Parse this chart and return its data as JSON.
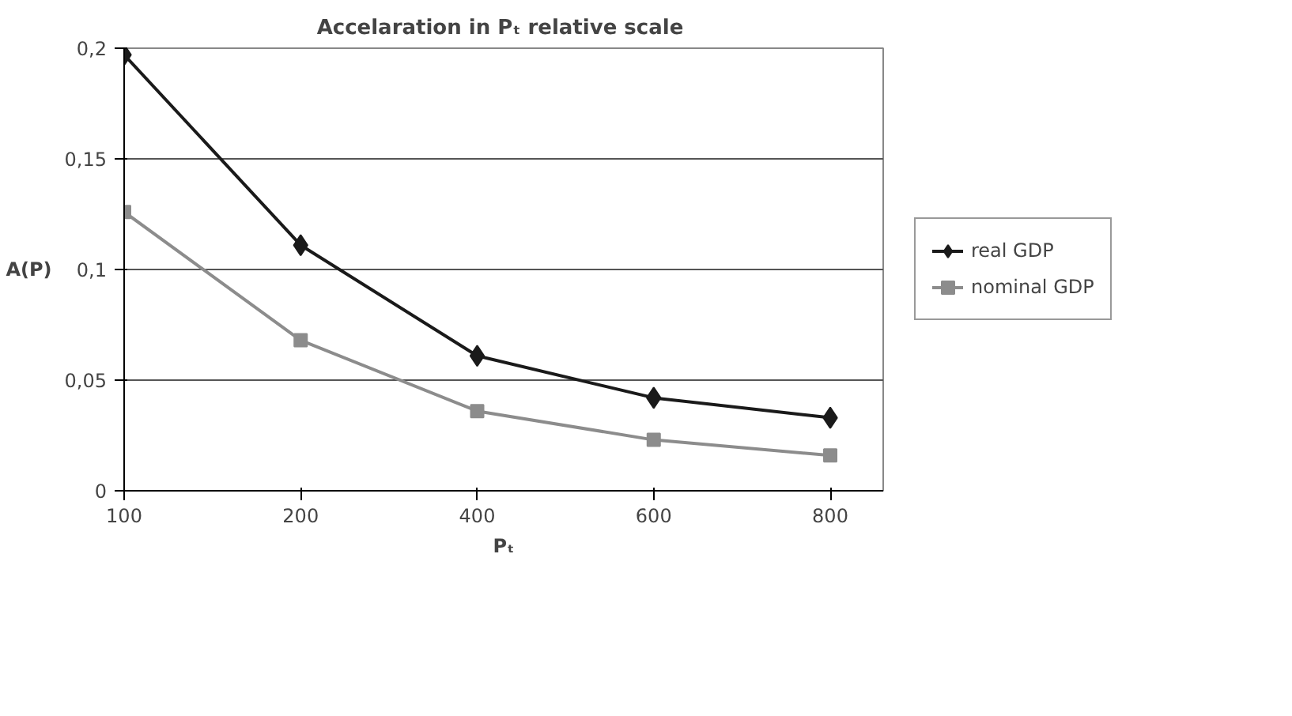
{
  "chart_data": {
    "type": "line",
    "title": "Accelaration in Pₜ  relative scale",
    "xlabel": "Pₜ",
    "ylabel": "A(P)",
    "categories": [
      "100",
      "200",
      "400",
      "600",
      "800"
    ],
    "series": [
      {
        "name": "real GDP",
        "color": "#1a1a1a",
        "marker": "diamond",
        "values": [
          0.197,
          0.111,
          0.061,
          0.042,
          0.033
        ]
      },
      {
        "name": "nominal GDP",
        "color": "#8c8c8c",
        "marker": "square",
        "values": [
          0.126,
          0.068,
          0.036,
          0.023,
          0.016
        ]
      }
    ],
    "ylim": [
      0,
      0.2
    ],
    "yticks": [
      {
        "value": 0,
        "label": "0"
      },
      {
        "value": 0.05,
        "label": "0,05"
      },
      {
        "value": 0.1,
        "label": "0,1"
      },
      {
        "value": 0.15,
        "label": "0,15"
      },
      {
        "value": 0.2,
        "label": "0,2"
      }
    ],
    "grid": "y",
    "legend": "right",
    "line_style": "solid"
  }
}
